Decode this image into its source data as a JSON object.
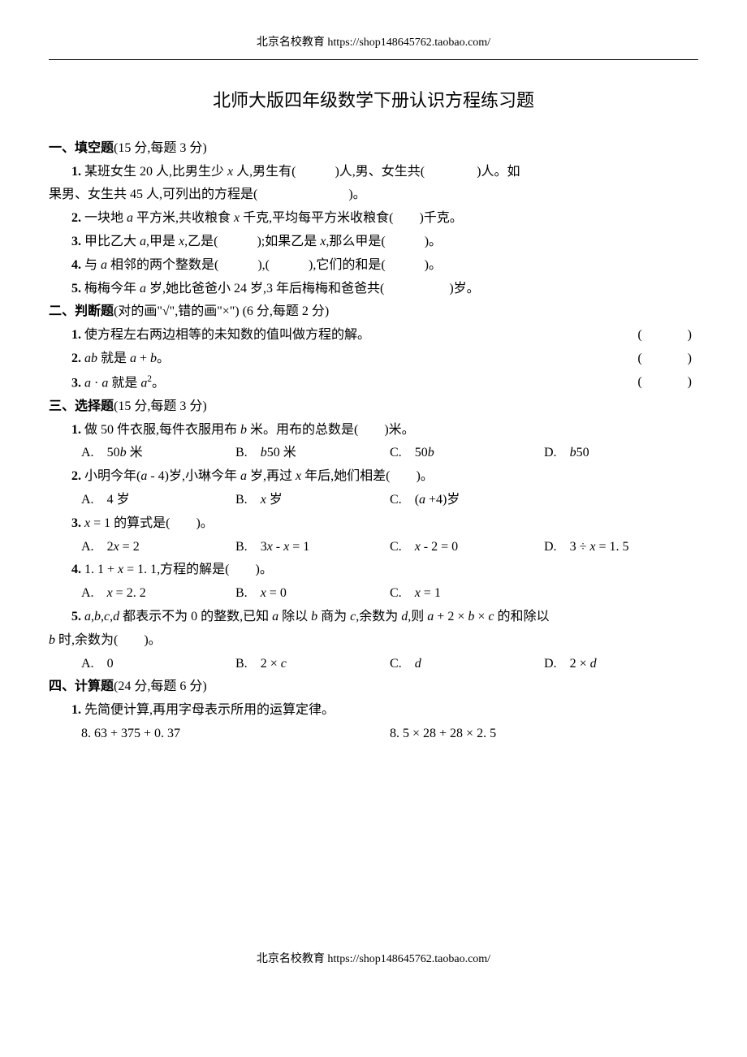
{
  "header_url": "北京名校教育 https://shop148645762.taobao.com/",
  "title": "北师大版四年级数学下册认识方程练习题",
  "sections": {
    "s1": {
      "heading": "一、填空题",
      "score": "(15 分,每题 3 分)",
      "q1_prefix": "1. ",
      "q1_text1": "某班女生 20 人,比男生少 ",
      "q1_var1": "x",
      "q1_text2": " 人,男生有(　　　)人,男、女生共(　　　　)人。如",
      "q1_cont": "果男、女生共 45 人,可列出的方程是(　　　　　　　)。",
      "q2_prefix": "2. ",
      "q2_text1": "一块地 ",
      "q2_var1": "a",
      "q2_text2": " 平方米,共收粮食 ",
      "q2_var2": "x",
      "q2_text3": " 千克,平均每平方米收粮食(　　)千克。",
      "q3_prefix": "3. ",
      "q3_text1": "甲比乙大 ",
      "q3_var1": "a",
      "q3_text2": ",甲是 ",
      "q3_var2": "x",
      "q3_text3": ",乙是(　　　);如果乙是 ",
      "q3_var3": "x",
      "q3_text4": ",那么甲是(　　　)。",
      "q4_prefix": "4. ",
      "q4_text1": "与 ",
      "q4_var1": "a",
      "q4_text2": " 相邻的两个整数是(　　　),(　　　),它们的和是(　　　)。",
      "q5_prefix": "5. ",
      "q5_text1": "梅梅今年 ",
      "q5_var1": "a",
      "q5_text2": " 岁,她比爸爸小 24 岁,3 年后梅梅和爸爸共(　　　　　)岁。"
    },
    "s2": {
      "heading": "二、判断题",
      "score": "(对的画\"√\",错的画\"×\") (6 分,每题 2 分)",
      "q1_prefix": "1. ",
      "q1_text": "使方程左右两边相等的未知数的值叫做方程的解。",
      "q1_paren": "(　　)",
      "q2_prefix": "2. ",
      "q2_var1": "ab",
      "q2_text1": " 就是 ",
      "q2_var2": "a",
      "q2_text2": " + ",
      "q2_var3": "b",
      "q2_text3": "。",
      "q2_paren": "(　　)",
      "q3_prefix": "3. ",
      "q3_var1": "a",
      "q3_text1": " · ",
      "q3_var2": "a",
      "q3_text2": " 就是 ",
      "q3_var3": "a",
      "q3_sup": "2",
      "q3_text3": "。",
      "q3_paren": "(　　)"
    },
    "s3": {
      "heading": "三、选择题",
      "score": "(15 分,每题 3 分)",
      "q1_prefix": "1. ",
      "q1_text1": "做 50 件衣服,每件衣服用布 ",
      "q1_var1": "b",
      "q1_text2": " 米。用布的总数是(　　)米。",
      "q1_a_label": "A.　",
      "q1_a_text1": "50",
      "q1_a_var": "b",
      "q1_a_text2": " 米",
      "q1_b_label": "B.　",
      "q1_b_var": "b",
      "q1_b_text": "50 米",
      "q1_c_label": "C.　",
      "q1_c_text": "50",
      "q1_c_var": "b",
      "q1_d_label": "D.　",
      "q1_d_var": "b",
      "q1_d_text": "50",
      "q2_prefix": "2. ",
      "q2_text1": "小明今年(",
      "q2_var1": "a",
      "q2_text2": " - 4)岁,小琳今年 ",
      "q2_var2": "a",
      "q2_text3": " 岁,再过 ",
      "q2_var3": "x",
      "q2_text4": " 年后,她们相差(　　)。",
      "q2_a_label": "A.　",
      "q2_a_text": "4 岁",
      "q2_b_label": "B.　",
      "q2_b_var": "x",
      "q2_b_text": " 岁",
      "q2_c_label": "C.　",
      "q2_c_text1": "(",
      "q2_c_var": "a",
      "q2_c_text2": " +4)岁",
      "q3_prefix": "3. ",
      "q3_var1": "x",
      "q3_text1": " = 1 的算式是(　　)。",
      "q3_a_label": "A.　",
      "q3_a_text1": "2",
      "q3_a_var": "x",
      "q3_a_text2": " = 2",
      "q3_b_label": "B.　",
      "q3_b_text1": "3",
      "q3_b_var1": "x",
      "q3_b_text2": " - ",
      "q3_b_var2": "x",
      "q3_b_text3": " = 1",
      "q3_c_label": "C.　",
      "q3_c_var": "x",
      "q3_c_text": " - 2 = 0",
      "q3_d_label": "D.　",
      "q3_d_text1": "3 ÷ ",
      "q3_d_var": "x",
      "q3_d_text2": " = 1. 5",
      "q4_prefix": "4. ",
      "q4_text1": "1. 1 + ",
      "q4_var1": "x",
      "q4_text2": " = 1. 1,方程的解是(　　)。",
      "q4_a_label": "A.　",
      "q4_a_var": "x",
      "q4_a_text": " = 2. 2",
      "q4_b_label": "B.　",
      "q4_b_var": "x",
      "q4_b_text": " = 0",
      "q4_c_label": "C.　",
      "q4_c_var": "x",
      "q4_c_text": " = 1",
      "q5_prefix": "5. ",
      "q5_var1": "a",
      "q5_text1": ",",
      "q5_var2": "b",
      "q5_text2": ",",
      "q5_var3": "c",
      "q5_text3": ",",
      "q5_var4": "d",
      "q5_text4": " 都表示不为 0 的整数,已知 ",
      "q5_var5": "a",
      "q5_text5": " 除以 ",
      "q5_var6": "b",
      "q5_text6": " 商为 ",
      "q5_var7": "c",
      "q5_text7": ",余数为 ",
      "q5_var8": "d",
      "q5_text8": ",则 ",
      "q5_var9": "a",
      "q5_text9": " + 2 × ",
      "q5_var10": "b",
      "q5_text10": " × ",
      "q5_var11": "c",
      "q5_text11": " 的和除以",
      "q5_cont_var": "b",
      "q5_cont_text": " 时,余数为(　　)。",
      "q5_a_label": "A.　",
      "q5_a_text": "0",
      "q5_b_label": "B.　",
      "q5_b_text1": "2 × ",
      "q5_b_var": "c",
      "q5_c_label": "C.　",
      "q5_c_var": "d",
      "q5_d_label": "D.　",
      "q5_d_text1": "2 × ",
      "q5_d_var": "d"
    },
    "s4": {
      "heading": "四、计算题",
      "score": "(24 分,每题 6 分)",
      "q1_prefix": "1. ",
      "q1_text": "先简便计算,再用字母表示所用的运算定律。",
      "q1_expr1": "8. 63 + 375 + 0. 37",
      "q1_expr2": "8. 5 × 28 + 28 × 2. 5"
    }
  },
  "footer_url": "北京名校教育 https://shop148645762.taobao.com/"
}
